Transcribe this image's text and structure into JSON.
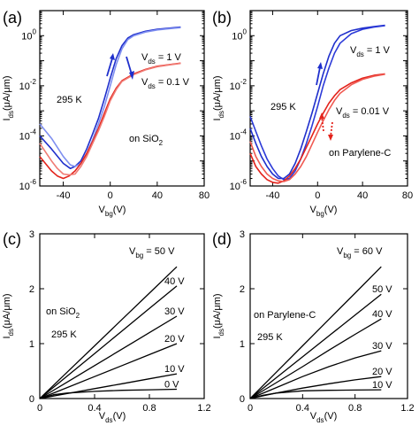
{
  "chart_data": [
    {
      "id": "a",
      "type": "line",
      "panel_label": "(a)",
      "xlabel": "V_bg(V)",
      "ylabel": "I_ds(μA/μm)",
      "log_y": true,
      "xlim": [
        -60,
        80
      ],
      "ylim": [
        1e-06,
        10
      ],
      "xticks": [
        -40,
        0,
        40,
        80
      ],
      "yticks_exp": [
        -6,
        -4,
        -2,
        0
      ],
      "annotations": [
        {
          "text": "295 K"
        },
        {
          "text": "on SiO",
          "sub": "2"
        },
        {
          "text": "V",
          "sub": "ds",
          "tail": " = 1 V"
        },
        {
          "text": "V",
          "sub": "ds",
          "tail": " = 0.1 V"
        }
      ],
      "series": [
        {
          "color": "#1f2fcc",
          "x": [
            -60,
            -50,
            -40,
            -34,
            -30,
            -25,
            -20,
            -15,
            -10,
            -5,
            0,
            5,
            10,
            15,
            20,
            30,
            40,
            50,
            60
          ],
          "y": [
            0.0001,
            3e-05,
            8e-06,
            5e-06,
            6e-06,
            1e-05,
            3e-05,
            0.00012,
            0.0005,
            0.003,
            0.02,
            0.12,
            0.4,
            0.8,
            1.1,
            1.5,
            1.8,
            2.0,
            2.2
          ]
        },
        {
          "color": "#7f8ff0",
          "x": [
            -60,
            -50,
            -40,
            -34,
            -30,
            -25,
            -20,
            -15,
            -10,
            -5,
            0,
            5,
            10,
            15,
            20,
            30,
            40,
            50,
            60
          ],
          "y": [
            0.0003,
            8e-05,
            1.5e-05,
            7e-06,
            6e-06,
            8e-06,
            2e-05,
            7e-05,
            0.0003,
            0.0015,
            0.01,
            0.07,
            0.3,
            0.7,
            1.0,
            1.4,
            1.7,
            1.9,
            2.1
          ]
        },
        {
          "color": "#e3231b",
          "x": [
            -60,
            -50,
            -45,
            -40,
            -35,
            -30,
            -25,
            -20,
            -15,
            -10,
            -5,
            0,
            5,
            10,
            20,
            30,
            40,
            50,
            60
          ],
          "y": [
            1.5e-05,
            4e-06,
            2.5e-06,
            2e-06,
            2.5e-06,
            4e-06,
            8e-06,
            2e-05,
            6e-05,
            0.0002,
            0.0008,
            0.003,
            0.008,
            0.016,
            0.03,
            0.045,
            0.06,
            0.07,
            0.08
          ]
        },
        {
          "color": "#f07b74",
          "x": [
            -60,
            -50,
            -45,
            -40,
            -35,
            -30,
            -25,
            -20,
            -15,
            -10,
            -5,
            0,
            5,
            10,
            20,
            30,
            40,
            50,
            60
          ],
          "y": [
            5e-05,
            1e-05,
            5e-06,
            3e-06,
            2.8e-06,
            3e-06,
            6e-06,
            1.5e-05,
            5e-05,
            0.00016,
            0.0006,
            0.0025,
            0.007,
            0.015,
            0.028,
            0.043,
            0.058,
            0.068,
            0.078
          ]
        }
      ]
    },
    {
      "id": "b",
      "type": "line",
      "panel_label": "(b)",
      "xlabel": "V_bg(V)",
      "ylabel": "I_ds(μA/μm)",
      "log_y": true,
      "xlim": [
        -60,
        80
      ],
      "ylim": [
        1e-06,
        10
      ],
      "xticks": [
        -40,
        0,
        40,
        80
      ],
      "yticks_exp": [
        -6,
        -4,
        -2,
        0
      ],
      "annotations": [
        {
          "text": "295 K"
        },
        {
          "text": "on Parylene-C"
        },
        {
          "text": "V",
          "sub": "ds",
          "tail": " = 1 V"
        },
        {
          "text": "V",
          "sub": "ds",
          "tail": " = 0.01 V"
        }
      ],
      "series": [
        {
          "color": "#1f2fcc",
          "x": [
            -60,
            -55,
            -50,
            -45,
            -40,
            -35,
            -30,
            -25,
            -20,
            -15,
            -10,
            -5,
            0,
            5,
            10,
            15,
            20,
            30,
            40,
            50,
            60
          ],
          "y": [
            0.0002,
            5e-05,
            1.5e-05,
            6e-06,
            3e-06,
            2e-06,
            2e-06,
            3e-06,
            8e-06,
            3e-05,
            0.00015,
            0.0008,
            0.005,
            0.03,
            0.15,
            0.5,
            1.0,
            1.6,
            2.0,
            2.3,
            2.6
          ]
        },
        {
          "color": "#2c3ad8",
          "x": [
            -60,
            -55,
            -50,
            -45,
            -40,
            -35,
            -30,
            -25,
            -20,
            -15,
            -10,
            -5,
            0,
            5,
            10,
            15,
            20,
            30,
            40,
            50,
            60
          ],
          "y": [
            0.0006,
            0.00015,
            4e-05,
            1.2e-05,
            5e-06,
            2.5e-06,
            1.8e-06,
            2e-06,
            4e-06,
            1.2e-05,
            5e-05,
            0.00025,
            0.0015,
            0.01,
            0.05,
            0.2,
            0.5,
            1.2,
            1.8,
            2.2,
            2.5
          ]
        },
        {
          "color": "#e3231b",
          "x": [
            -60,
            -55,
            -50,
            -45,
            -40,
            -35,
            -30,
            -25,
            -20,
            -15,
            -10,
            -5,
            0,
            5,
            10,
            15,
            20,
            30,
            40,
            50,
            60
          ],
          "y": [
            2e-05,
            6e-06,
            3e-06,
            1.8e-06,
            1.4e-06,
            1.3e-06,
            1.6e-06,
            2.5e-06,
            5e-06,
            1.2e-05,
            3.5e-05,
            0.0001,
            0.0003,
            0.0008,
            0.002,
            0.004,
            0.007,
            0.013,
            0.02,
            0.026,
            0.03
          ]
        },
        {
          "color": "#f05a52",
          "x": [
            -60,
            -55,
            -50,
            -45,
            -40,
            -35,
            -30,
            -25,
            -20,
            -15,
            -10,
            -5,
            0,
            5,
            10,
            15,
            20,
            30,
            40,
            50,
            60
          ],
          "y": [
            6e-05,
            1.5e-05,
            6e-06,
            3e-06,
            2e-06,
            1.6e-06,
            1.5e-06,
            1.8e-06,
            3e-06,
            6e-06,
            1.5e-05,
            4.5e-05,
            0.00014,
            0.0004,
            0.0011,
            0.0026,
            0.005,
            0.011,
            0.018,
            0.024,
            0.029
          ]
        }
      ]
    },
    {
      "id": "c",
      "type": "line",
      "panel_label": "(c)",
      "xlabel": "V_ds(V)",
      "ylabel": "I_ds(μA/μm)",
      "xlim": [
        0,
        1.2
      ],
      "ylim": [
        0,
        3
      ],
      "xticks": [
        0,
        0.4,
        0.8,
        1.2
      ],
      "yticks": [
        0,
        1,
        2,
        3
      ],
      "annotations": [
        {
          "text": "on SiO",
          "sub": "2"
        },
        {
          "text": "295 K"
        }
      ],
      "series": [
        {
          "label": "V_bg = 50 V",
          "x": [
            0,
            0.2,
            0.4,
            0.6,
            0.8,
            1.0
          ],
          "y": [
            0,
            0.48,
            0.96,
            1.44,
            1.92,
            2.4
          ]
        },
        {
          "label": "40 V",
          "x": [
            0,
            0.2,
            0.4,
            0.6,
            0.8,
            1.0
          ],
          "y": [
            0,
            0.41,
            0.82,
            1.23,
            1.64,
            2.05
          ]
        },
        {
          "label": "30 V",
          "x": [
            0,
            0.2,
            0.4,
            0.6,
            0.8,
            1.0
          ],
          "y": [
            0,
            0.3,
            0.6,
            0.9,
            1.2,
            1.5
          ]
        },
        {
          "label": "20 V",
          "x": [
            0,
            0.2,
            0.4,
            0.6,
            0.8,
            1.0
          ],
          "y": [
            0,
            0.2,
            0.4,
            0.6,
            0.8,
            1.0
          ]
        },
        {
          "label": "10 V",
          "x": [
            0,
            0.2,
            0.4,
            0.6,
            0.8,
            1.0
          ],
          "y": [
            0,
            0.09,
            0.18,
            0.27,
            0.36,
            0.45
          ]
        },
        {
          "label": "0 V",
          "x": [
            0,
            0.1,
            0.2,
            0.4,
            0.6,
            0.8,
            1.0
          ],
          "y": [
            0,
            0.07,
            0.1,
            0.13,
            0.15,
            0.16,
            0.17
          ]
        }
      ]
    },
    {
      "id": "d",
      "type": "line",
      "panel_label": "(d)",
      "xlabel": "V_ds(V)",
      "ylabel": "I_ds(μA/μm)",
      "xlim": [
        0,
        1.2
      ],
      "ylim": [
        0,
        3
      ],
      "xticks": [
        0,
        0.4,
        0.8,
        1.2
      ],
      "yticks": [
        0,
        1,
        2,
        3
      ],
      "annotations": [
        {
          "text": "on Parylene-C"
        },
        {
          "text": "295 K"
        }
      ],
      "series": [
        {
          "label": "V_bg = 60 V",
          "x": [
            0,
            0.2,
            0.4,
            0.6,
            0.8,
            1.0
          ],
          "y": [
            0,
            0.48,
            0.96,
            1.44,
            1.92,
            2.4
          ]
        },
        {
          "label": "50 V",
          "x": [
            0,
            0.2,
            0.4,
            0.6,
            0.8,
            1.0
          ],
          "y": [
            0,
            0.38,
            0.76,
            1.14,
            1.52,
            1.9
          ]
        },
        {
          "label": "40 V",
          "x": [
            0,
            0.2,
            0.4,
            0.6,
            0.8,
            1.0
          ],
          "y": [
            0,
            0.29,
            0.58,
            0.88,
            1.17,
            1.45
          ]
        },
        {
          "label": "30 V",
          "x": [
            0,
            0.2,
            0.4,
            0.6,
            0.8,
            1.0
          ],
          "y": [
            0,
            0.2,
            0.4,
            0.58,
            0.74,
            0.87
          ]
        },
        {
          "label": "20 V",
          "x": [
            0,
            0.2,
            0.4,
            0.6,
            0.8,
            1.0
          ],
          "y": [
            0,
            0.1,
            0.19,
            0.27,
            0.34,
            0.4
          ]
        },
        {
          "label": "10 V",
          "x": [
            0,
            0.1,
            0.2,
            0.4,
            0.6,
            0.8,
            1.0
          ],
          "y": [
            0,
            0.06,
            0.1,
            0.14,
            0.15,
            0.155,
            0.16
          ]
        }
      ]
    }
  ]
}
